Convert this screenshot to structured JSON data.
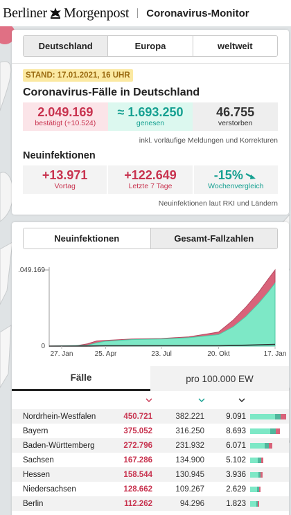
{
  "header": {
    "logo_left": "Berliner",
    "logo_right": "Morgenpost",
    "title": "Coronavirus-Monitor"
  },
  "region_tabs": [
    {
      "label": "Deutschland",
      "active": true
    },
    {
      "label": "Europa",
      "active": false
    },
    {
      "label": "weltweit",
      "active": false
    }
  ],
  "overview": {
    "stand": "STAND: 17.01.2021, 16 UHR",
    "title": "Coronavirus-Fälle in Deutschland",
    "stats": [
      {
        "value": "2.049.169",
        "label": "bestätigt (+10.524)"
      },
      {
        "value": "≈ 1.693.250",
        "label": "genesen"
      },
      {
        "value": "46.755",
        "label": "verstorben"
      }
    ],
    "note": "inkl. vorläufige Meldungen und Korrekturen"
  },
  "neuinfektionen": {
    "title": "Neuinfektionen",
    "stats": [
      {
        "value": "+13.971",
        "label": "Vortag"
      },
      {
        "value": "+122.649",
        "label": "Letzte 7 Tage"
      },
      {
        "value": "-15%",
        "label": "Wochenvergleich"
      }
    ],
    "note": "Neuinfektionen laut RKI und Ländern"
  },
  "chart_tabs": [
    {
      "label": "Neuinfektionen",
      "active": false
    },
    {
      "label": "Gesamt-Fallzahlen",
      "active": true
    }
  ],
  "chart_data": {
    "type": "area",
    "y_top_label": ".049.169",
    "y_zero_label": "0",
    "x_ticks": [
      "27. Jan",
      "25. Apr",
      "23. Jul",
      "20. Okt",
      "17. Jan"
    ],
    "x_tick_positions": [
      0,
      89,
      177,
      267,
      356
    ],
    "x_span_days": 356,
    "ylim": [
      0,
      2049169
    ],
    "series": [
      {
        "name": "bestätigt",
        "points": [
          [
            0,
            0
          ],
          [
            40,
            2000
          ],
          [
            60,
            60000
          ],
          [
            75,
            140000
          ],
          [
            89,
            155000
          ],
          [
            130,
            190000
          ],
          [
            177,
            205000
          ],
          [
            220,
            250000
          ],
          [
            250,
            330000
          ],
          [
            267,
            380000
          ],
          [
            290,
            700000
          ],
          [
            310,
            1050000
          ],
          [
            330,
            1450000
          ],
          [
            345,
            1800000
          ],
          [
            356,
            2049169
          ]
        ]
      },
      {
        "name": "genesen",
        "points": [
          [
            0,
            0
          ],
          [
            60,
            20000
          ],
          [
            75,
            90000
          ],
          [
            89,
            130000
          ],
          [
            130,
            175000
          ],
          [
            177,
            190000
          ],
          [
            220,
            225000
          ],
          [
            250,
            280000
          ],
          [
            267,
            310000
          ],
          [
            290,
            520000
          ],
          [
            310,
            800000
          ],
          [
            330,
            1150000
          ],
          [
            345,
            1450000
          ],
          [
            356,
            1693250
          ]
        ]
      },
      {
        "name": "verstorben",
        "points": [
          [
            0,
            0
          ],
          [
            60,
            2000
          ],
          [
            89,
            7000
          ],
          [
            177,
            9200
          ],
          [
            267,
            10000
          ],
          [
            290,
            16000
          ],
          [
            310,
            24000
          ],
          [
            330,
            33000
          ],
          [
            345,
            41000
          ],
          [
            356,
            46755
          ]
        ]
      }
    ],
    "colors": {
      "confirmed": "#d9637a",
      "recovered": "#7de8c6",
      "deaths": "#333333"
    }
  },
  "table_tabs": [
    {
      "label": "Fälle",
      "active": true
    },
    {
      "label": "pro 100.000 EW",
      "active": false
    }
  ],
  "states": [
    {
      "name": "Nordrhein-Westfalen",
      "confirmed": "450.721",
      "recovered": "382.221",
      "deaths": "9.091",
      "c": 450721,
      "r": 382221,
      "d": 9091
    },
    {
      "name": "Bayern",
      "confirmed": "375.052",
      "recovered": "316.250",
      "deaths": "8.693",
      "c": 375052,
      "r": 316250,
      "d": 8693
    },
    {
      "name": "Baden-Württemberg",
      "confirmed": "272.796",
      "recovered": "231.932",
      "deaths": "6.071",
      "c": 272796,
      "r": 231932,
      "d": 6071
    },
    {
      "name": "Sachsen",
      "confirmed": "167.286",
      "recovered": "134.900",
      "deaths": "5.102",
      "c": 167286,
      "r": 134900,
      "d": 5102
    },
    {
      "name": "Hessen",
      "confirmed": "158.544",
      "recovered": "130.945",
      "deaths": "3.936",
      "c": 158544,
      "r": 130945,
      "d": 3936
    },
    {
      "name": "Niedersachsen",
      "confirmed": "128.662",
      "recovered": "109.267",
      "deaths": "2.629",
      "c": 128662,
      "r": 109267,
      "d": 2629
    },
    {
      "name": "Berlin",
      "confirmed": "112.262",
      "recovered": "94.296",
      "deaths": "1.823",
      "c": 112262,
      "r": 94296,
      "d": 1823
    }
  ]
}
